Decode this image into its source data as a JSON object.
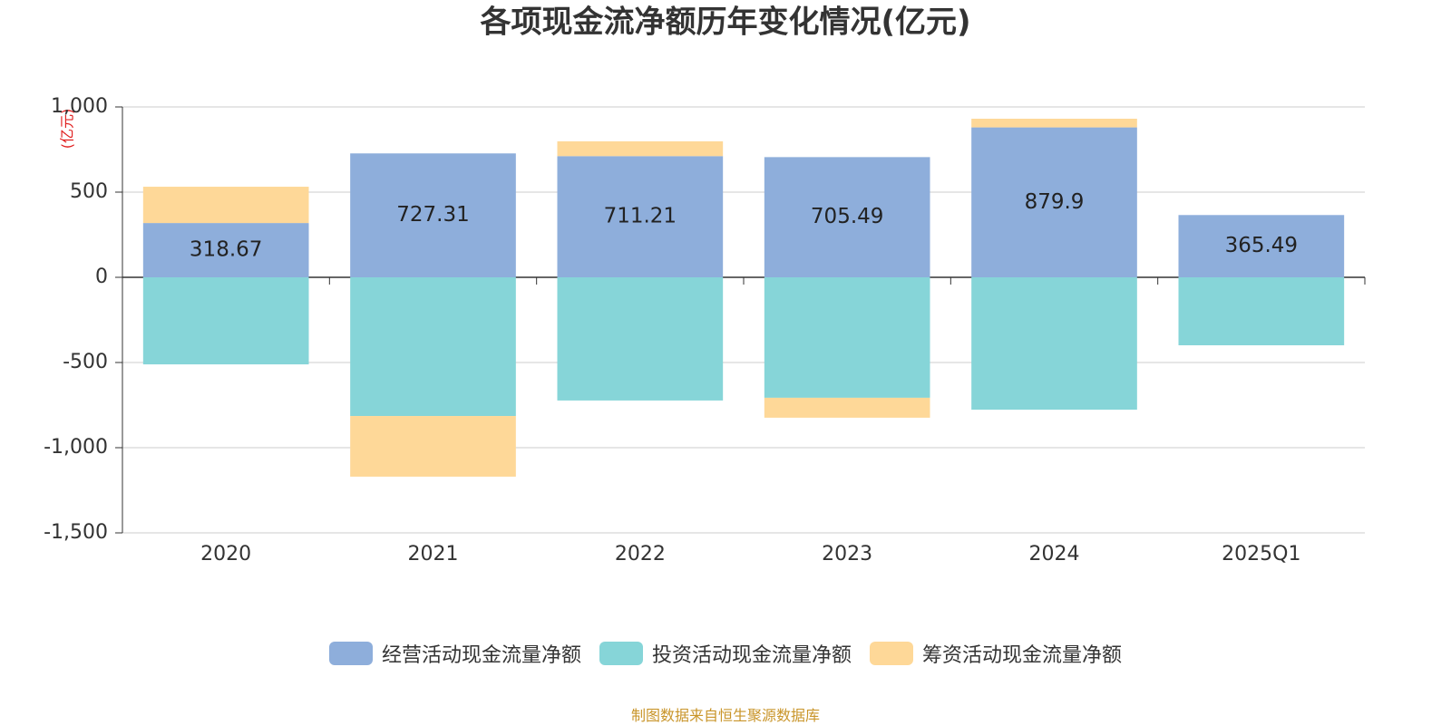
{
  "chart_data": {
    "type": "stacked_bar",
    "title": "各项现金流净额历年变化情况(亿元)",
    "y_unit": "(亿元)",
    "source": "制图数据来自恒生聚源数据库",
    "categories": [
      "2020",
      "2021",
      "2022",
      "2023",
      "2024",
      "2025Q1"
    ],
    "series": [
      {
        "name": "经营活动现金流量净额",
        "color": "#8eaedb",
        "labels": true,
        "values": [
          318.67,
          727.31,
          711.21,
          705.49,
          879.9,
          365.49
        ]
      },
      {
        "name": "投资活动现金流量净额",
        "color": "#86d5d8",
        "values": [
          -511,
          -814,
          -723,
          -707,
          -777,
          -399
        ]
      },
      {
        "name": "筹资活动现金流量净额",
        "color": "#fed898",
        "values": [
          213,
          -356,
          87,
          -117,
          51,
          0
        ]
      }
    ],
    "ylim": [
      -1500,
      1000
    ],
    "yticks": [
      {
        "value": -1500,
        "label": "-1,500"
      },
      {
        "value": -1000,
        "label": "-1,000"
      },
      -500,
      0,
      500,
      {
        "value": 1000,
        "label": "1,000"
      }
    ],
    "grid": true
  }
}
